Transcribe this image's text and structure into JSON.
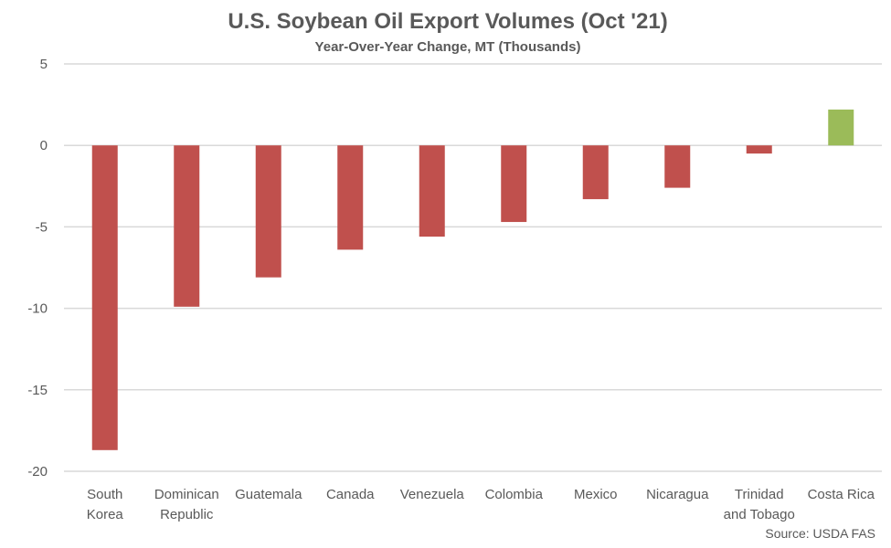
{
  "chart_data": {
    "type": "bar",
    "title": "U.S. Soybean Oil Export Volumes (Oct '21)",
    "subtitle": "Year-Over-Year Change, MT (Thousands)",
    "xlabel": "",
    "ylabel": "",
    "categories": [
      [
        "South",
        "Korea"
      ],
      [
        "Dominican",
        "Republic"
      ],
      [
        "Guatemala"
      ],
      [
        "Canada"
      ],
      [
        "Venezuela"
      ],
      [
        "Colombia"
      ],
      [
        "Mexico"
      ],
      [
        "Nicaragua"
      ],
      [
        "Trinidad",
        "and Tobago"
      ],
      [
        "Costa Rica"
      ]
    ],
    "values": [
      -18.7,
      -9.9,
      -8.1,
      -6.4,
      -5.6,
      -4.7,
      -3.3,
      -2.6,
      -0.5,
      2.2
    ],
    "ylim": [
      -20,
      5
    ],
    "yticks": [
      5,
      0,
      -5,
      -10,
      -15,
      -20
    ],
    "grid": true,
    "colors": {
      "negative": "#c0504d",
      "positive": "#9bbb59"
    },
    "source": "Source: USDA FAS"
  }
}
